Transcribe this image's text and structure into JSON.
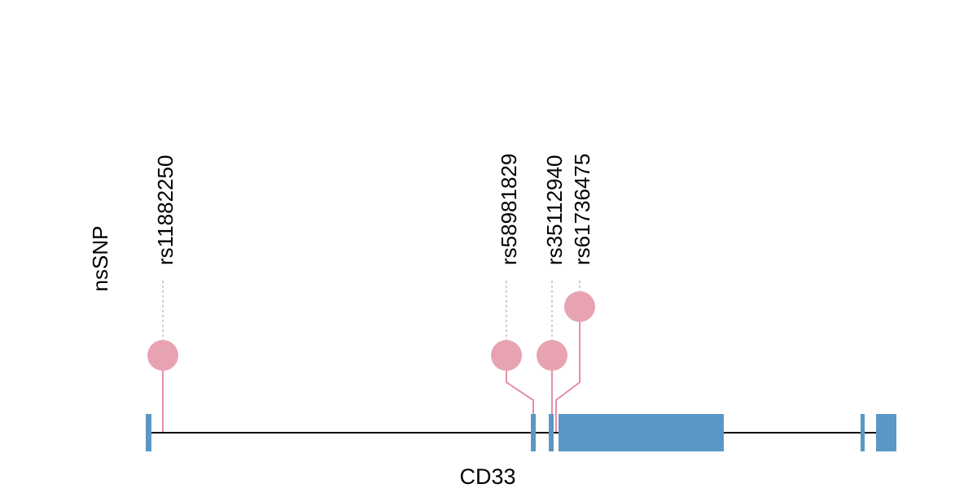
{
  "track_label": "nsSNP",
  "gene_label": "CD33",
  "colors": {
    "lollipop": "#E8A3B2",
    "lollipop_line": "#E58FA8",
    "exon": "#5B97C4",
    "intron": "#000000",
    "guide": "#BDBDBD"
  },
  "snps": [
    {
      "id": "rs11882250",
      "position": 200,
      "marker_position": 200,
      "height": 1
    },
    {
      "id": "rs58981829",
      "position": 655,
      "marker_position": 622,
      "height": 1
    },
    {
      "id": "rs35112940",
      "position": 678,
      "marker_position": 678,
      "height": 1
    },
    {
      "id": "rs61736475",
      "position": 683,
      "marker_position": 712,
      "height": 2
    }
  ],
  "exons": [
    {
      "start": 179,
      "end": 186
    },
    {
      "start": 652,
      "end": 658
    },
    {
      "start": 674,
      "end": 680
    },
    {
      "start": 686,
      "end": 889
    },
    {
      "start": 1057,
      "end": 1062
    },
    {
      "start": 1076,
      "end": 1101
    }
  ],
  "gene_range": [
    179,
    1101
  ]
}
